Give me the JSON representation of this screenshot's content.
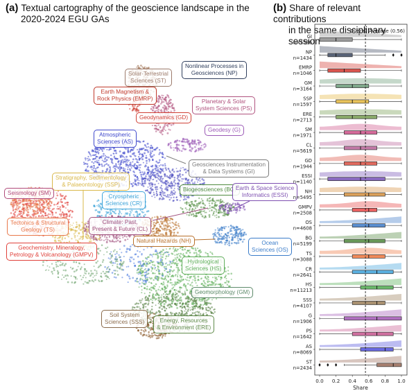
{
  "panel_a": {
    "letter": "(a)",
    "title_line1": "Textual cartography of the geoscience landscape in the",
    "title_line2": "2020-2024 EGU GAs",
    "labels": [
      {
        "id": "NP",
        "text1": "Nonlinear Processes in",
        "text2": "Geosciences (NP)",
        "color": "#2f3e5c"
      },
      {
        "id": "ST",
        "text1": "Solar-Terrestrial",
        "text2": "Sciences (ST)",
        "color": "#9c7a6a"
      },
      {
        "id": "EMRP",
        "text1": "Earth Magnetism &",
        "text2": "Rock Physics (EMRP)",
        "color": "#c0392b"
      },
      {
        "id": "PS",
        "text1": "Planetary & Solar",
        "text2": "System Sciences (PS)",
        "color": "#b0527e"
      },
      {
        "id": "GD",
        "text1": "Geodynamics (GD)",
        "text2": "",
        "color": "#d04035"
      },
      {
        "id": "G",
        "text1": "Geodesy (G)",
        "text2": "",
        "color": "#9b59b6"
      },
      {
        "id": "AS",
        "text1": "Atmospheric",
        "text2": "Sciences (AS)",
        "color": "#3f48cc"
      },
      {
        "id": "GI",
        "text1": "Geosciences Instrumentation",
        "text2": "& Data Systems (GI)",
        "color": "#7a7a7a"
      },
      {
        "id": "SSP",
        "text1": "Stratigraphy, Sedimentology",
        "text2": "& Palaeontology (SSP)",
        "color": "#d9b84a"
      },
      {
        "id": "SM",
        "text1": "Seismology (SM)",
        "text2": "",
        "color": "#b04a7a"
      },
      {
        "id": "CR",
        "text1": "Cryospheric",
        "text2": "Sciences (CR)",
        "color": "#3ba3d9"
      },
      {
        "id": "BG",
        "text1": "Biogeosciences (BG)",
        "text2": "",
        "color": "#4e8a3e"
      },
      {
        "id": "ESSI",
        "text1": "Earth & Space Science",
        "text2": "Informatics (ESSI)",
        "color": "#7d4fb0"
      },
      {
        "id": "TS",
        "text1": "Tectonics & Structural",
        "text2": "Geology (TS)",
        "color": "#e8784a"
      },
      {
        "id": "CL",
        "text1": "Climate: Past,",
        "text2": "Present & Future (CL)",
        "color": "#a0507e"
      },
      {
        "id": "NH",
        "text1": "Natural Hazards (NH)",
        "text2": "",
        "color": "#b8702a"
      },
      {
        "id": "OS",
        "text1": "Ocean",
        "text2": "Sciences (OS)",
        "color": "#3a7cc9"
      },
      {
        "id": "GMPV",
        "text1": "Geochemistry, Mineralogy,",
        "text2": "Petrology & Volcanology (GMPV)",
        "color": "#e0403a"
      },
      {
        "id": "HS",
        "text1": "Hydrological",
        "text2": "Sciences (HS)",
        "color": "#5fae5a"
      },
      {
        "id": "GM",
        "text1": "Geomorphology (GM)",
        "text2": "",
        "color": "#5d8a6a"
      },
      {
        "id": "SSS",
        "text1": "Soil System",
        "text2": "Sciences (SSS)",
        "color": "#8a6a4a"
      },
      {
        "id": "ERE",
        "text1": "Energy, Resources",
        "text2": "& Environment (ERE)",
        "color": "#5f8a4a"
      }
    ]
  },
  "panel_b": {
    "letter": "(b)",
    "title_line1": "Share of relevant contributions",
    "title_line2": "in the same disciplinary session"
  },
  "chart_data": {
    "type": "boxplot-raincloud",
    "title": "Share of relevant contributions in the same disciplinary session",
    "xlabel": "Share",
    "ylabel": "",
    "xlim": [
      0.0,
      1.0
    ],
    "xticks": [
      "0.0",
      "0.2",
      "0.4",
      "0.6",
      "0.8",
      "1.0"
    ],
    "xtick_values": [
      0.0,
      0.2,
      0.4,
      0.6,
      0.8,
      1.0
    ],
    "reference_line": {
      "value": 0.56,
      "label": "Overall Average (0.56)",
      "style": "dashed"
    },
    "grid": false,
    "series": [
      {
        "name": "GI",
        "n": "n=1586",
        "q1": 0.0,
        "median": 0.2,
        "q3": 0.4,
        "whisker_low": 0.0,
        "whisker_high": 1.0,
        "outliers": [],
        "color": "#9e9e9e",
        "density": "left"
      },
      {
        "name": "NP",
        "n": "n=1434",
        "q1": 0.1,
        "median": 0.2,
        "q3": 0.4,
        "whisker_low": 0.0,
        "whisker_high": 0.8,
        "outliers": [
          0.9,
          1.0
        ],
        "color": "#5a6478",
        "density": "left"
      },
      {
        "name": "EMRP",
        "n": "n=1046",
        "q1": 0.1,
        "median": 0.3,
        "q3": 0.5,
        "whisker_low": 0.0,
        "whisker_high": 1.0,
        "outliers": [],
        "color": "#d9544d",
        "density": "left"
      },
      {
        "name": "GM",
        "n": "n=3164",
        "q1": 0.2,
        "median": 0.4,
        "q3": 0.6,
        "whisker_low": 0.0,
        "whisker_high": 1.0,
        "outliers": [],
        "color": "#7fa88a",
        "density": "flat"
      },
      {
        "name": "SSP",
        "n": "n=1597",
        "q1": 0.2,
        "median": 0.4,
        "q3": 0.6,
        "whisker_low": 0.0,
        "whisker_high": 1.0,
        "outliers": [],
        "color": "#e8c25a",
        "density": "flat"
      },
      {
        "name": "ERE",
        "n": "n=2713",
        "q1": 0.2,
        "median": 0.4,
        "q3": 0.7,
        "whisker_low": 0.0,
        "whisker_high": 1.0,
        "outliers": [],
        "color": "#8aaa6a",
        "density": "flat"
      },
      {
        "name": "SM",
        "n": "n=1971",
        "q1": 0.3,
        "median": 0.5,
        "q3": 0.7,
        "whisker_low": 0.0,
        "whisker_high": 1.0,
        "outliers": [],
        "color": "#d56a9a",
        "density": "mid"
      },
      {
        "name": "CL",
        "n": "n=5619",
        "q1": 0.3,
        "median": 0.5,
        "q3": 0.7,
        "whisker_low": 0.0,
        "whisker_high": 1.0,
        "outliers": [],
        "color": "#c47aa8",
        "density": "mid"
      },
      {
        "name": "GD",
        "n": "n=1944",
        "q1": 0.3,
        "median": 0.5,
        "q3": 0.7,
        "whisker_low": 0.0,
        "whisker_high": 1.0,
        "outliers": [],
        "color": "#e06a5e",
        "density": "mid"
      },
      {
        "name": "ESSI",
        "n": "n=1140",
        "q1": 0.1,
        "median": 0.5,
        "q3": 0.8,
        "whisker_low": 0.0,
        "whisker_high": 1.0,
        "outliers": [],
        "color": "#8a6ac0",
        "density": "flat"
      },
      {
        "name": "NH",
        "n": "n=5495",
        "q1": 0.3,
        "median": 0.6,
        "q3": 0.8,
        "whisker_low": 0.0,
        "whisker_high": 1.0,
        "outliers": [],
        "color": "#dba05a",
        "density": "flat"
      },
      {
        "name": "GMPV",
        "n": "n=2508",
        "q1": 0.4,
        "median": 0.6,
        "q3": 0.7,
        "whisker_low": 0.0,
        "whisker_high": 1.0,
        "outliers": [],
        "color": "#e86060",
        "density": "mid"
      },
      {
        "name": "OS",
        "n": "n=4608",
        "q1": 0.4,
        "median": 0.6,
        "q3": 0.8,
        "whisker_low": 0.0,
        "whisker_high": 1.0,
        "outliers": [],
        "color": "#5a8ed0",
        "density": "right"
      },
      {
        "name": "BG",
        "n": "n=5199",
        "q1": 0.3,
        "median": 0.6,
        "q3": 0.8,
        "whisker_low": 0.0,
        "whisker_high": 1.0,
        "outliers": [],
        "color": "#6a9a5a",
        "density": "right"
      },
      {
        "name": "TS",
        "n": "n=3088",
        "q1": 0.4,
        "median": 0.6,
        "q3": 0.8,
        "whisker_low": 0.0,
        "whisker_high": 1.0,
        "outliers": [],
        "color": "#f08a5a",
        "density": "mid"
      },
      {
        "name": "CR",
        "n": "n=2641",
        "q1": 0.4,
        "median": 0.7,
        "q3": 0.9,
        "whisker_low": 0.0,
        "whisker_high": 1.0,
        "outliers": [],
        "color": "#5ab0e0",
        "density": "right"
      },
      {
        "name": "HS",
        "n": "n=11213",
        "q1": 0.5,
        "median": 0.7,
        "q3": 0.9,
        "whisker_low": 0.0,
        "whisker_high": 1.0,
        "outliers": [],
        "color": "#6ab86a",
        "density": "right"
      },
      {
        "name": "SSS",
        "n": "n=4107",
        "q1": 0.4,
        "median": 0.7,
        "q3": 0.8,
        "whisker_low": 0.0,
        "whisker_high": 1.0,
        "outliers": [],
        "color": "#a89070",
        "density": "right"
      },
      {
        "name": "G",
        "n": "n=1906",
        "q1": 0.3,
        "median": 0.7,
        "q3": 1.0,
        "whisker_low": 0.0,
        "whisker_high": 1.0,
        "outliers": [],
        "color": "#b070c0",
        "density": "right"
      },
      {
        "name": "PS",
        "n": "n=1642",
        "q1": 0.4,
        "median": 0.7,
        "q3": 0.9,
        "whisker_low": 0.0,
        "whisker_high": 1.0,
        "outliers": [],
        "color": "#d070a0",
        "density": "right"
      },
      {
        "name": "AS",
        "n": "n=8069",
        "q1": 0.5,
        "median": 0.8,
        "q3": 0.9,
        "whisker_low": 0.0,
        "whisker_high": 1.0,
        "outliers": [],
        "color": "#6a6ae0",
        "density": "right"
      },
      {
        "name": "ST",
        "n": "n=2434",
        "q1": 0.7,
        "median": 0.9,
        "q3": 1.0,
        "whisker_low": 0.3,
        "whisker_high": 1.0,
        "outliers": [
          0.0,
          0.1,
          0.2
        ],
        "color": "#a88070",
        "density": "right"
      }
    ]
  }
}
